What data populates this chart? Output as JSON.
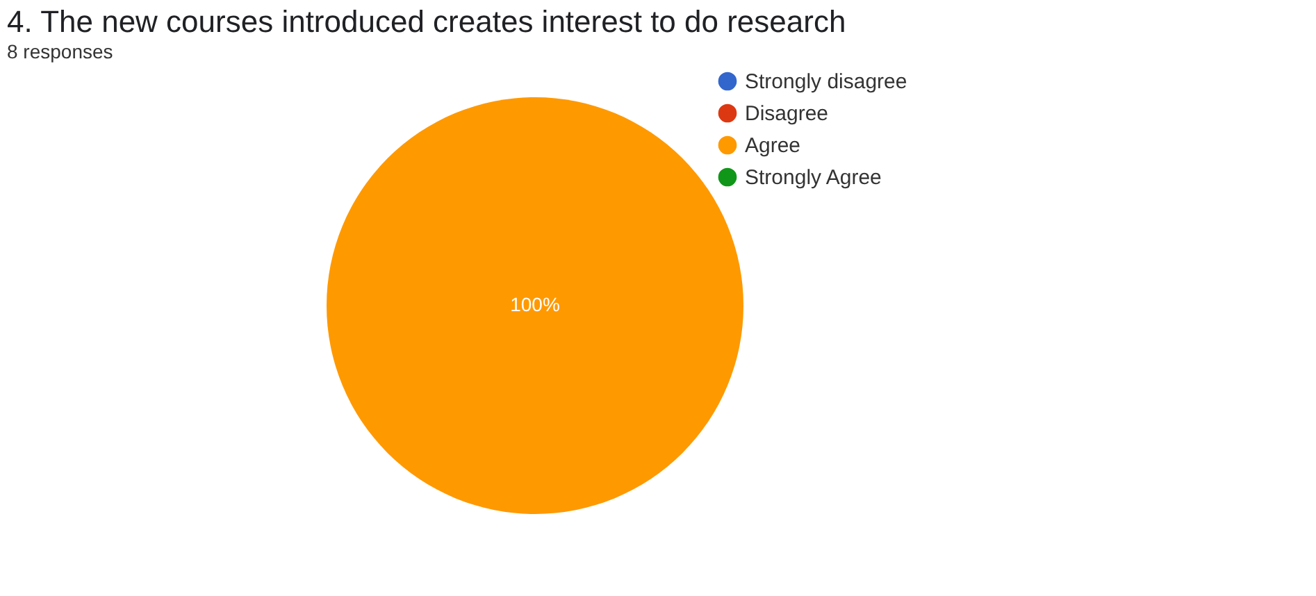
{
  "chart_data": {
    "type": "pie",
    "title": "4. The new courses introduced creates interest to do research",
    "subtitle": "8 responses",
    "categories": [
      "Strongly disagree",
      "Disagree",
      "Agree",
      "Strongly Agree"
    ],
    "values": [
      0,
      0,
      100,
      0
    ],
    "colors": [
      "#3366cc",
      "#dc3912",
      "#ff9900",
      "#109618"
    ],
    "value_labels": [
      null,
      null,
      "100%",
      null
    ],
    "legend": "right"
  }
}
